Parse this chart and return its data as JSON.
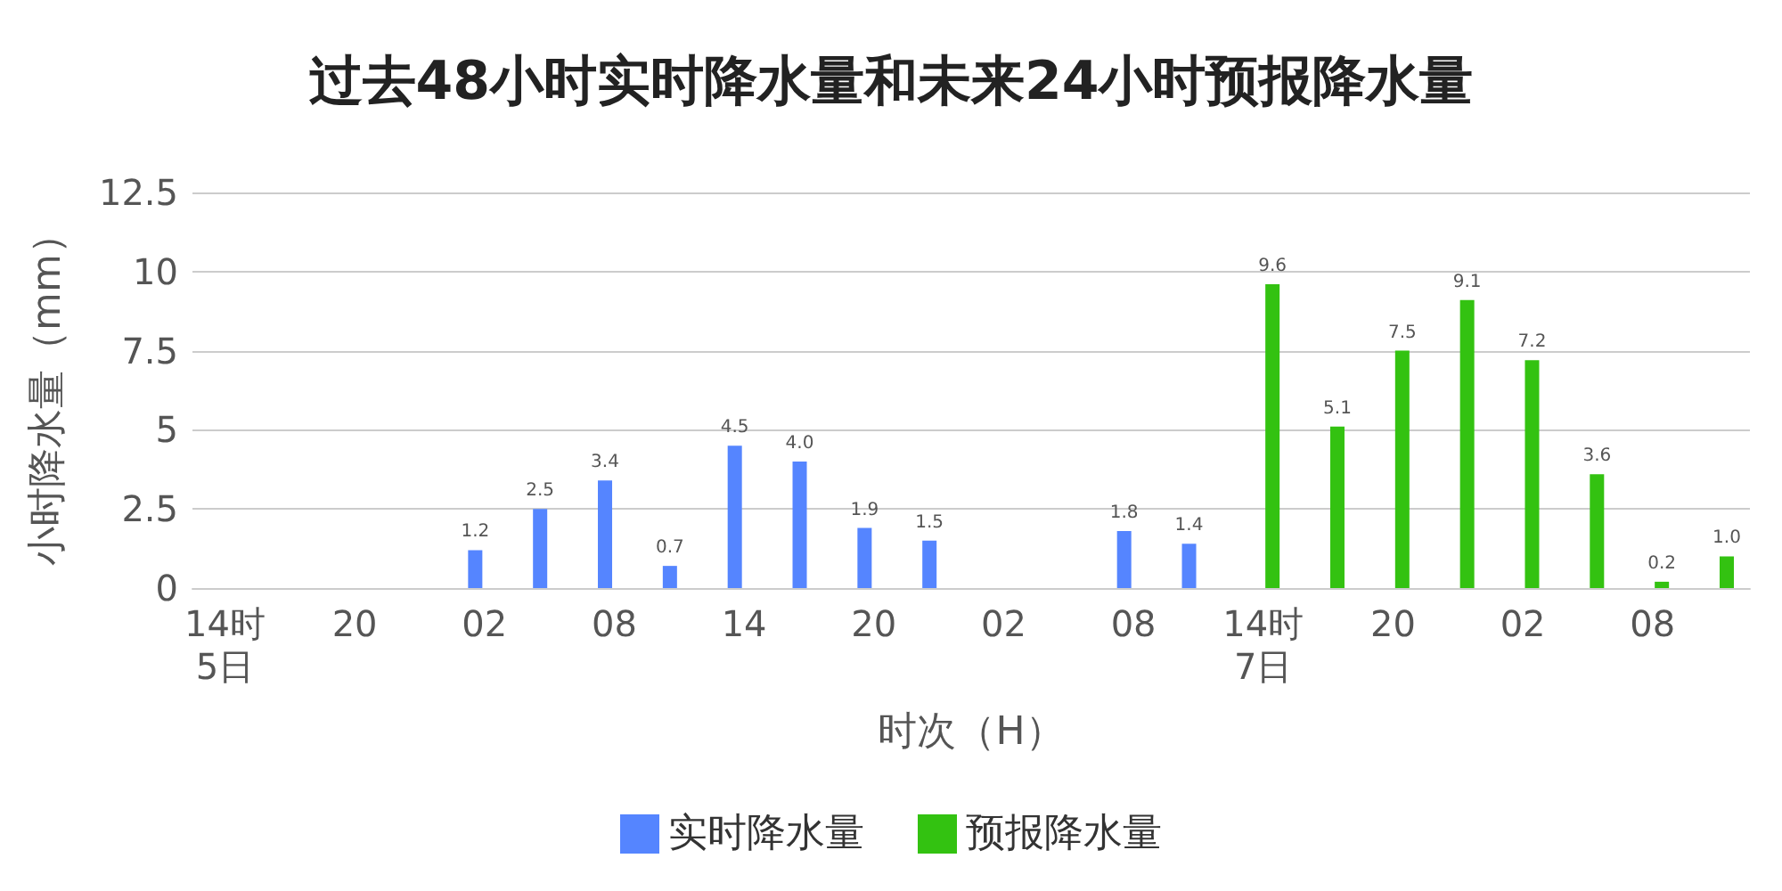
{
  "chart_data": {
    "type": "bar",
    "title": "过去48小时实时降水量和未来24小时预报降水量",
    "xlabel": "时次（H）",
    "ylabel": "小时降水量（mm）",
    "categories": [
      "14时\n5日",
      null,
      "20",
      null,
      "02",
      null,
      "08",
      null,
      "14",
      null,
      "20",
      null,
      "02",
      null,
      "08",
      null,
      "14时\n7日",
      null,
      "20",
      null,
      "02",
      null,
      "08",
      null
    ],
    "series": [
      {
        "name": "实时降水量",
        "color": "#5585ff",
        "values": [
          null,
          null,
          null,
          null,
          1.2,
          2.5,
          3.4,
          0.7,
          4.5,
          4.0,
          1.9,
          1.5,
          null,
          null,
          1.8,
          1.4,
          null,
          null,
          null,
          null,
          null,
          null,
          null,
          null
        ],
        "value_labels": [
          null,
          null,
          null,
          null,
          "1.2",
          "2.5",
          "3.4",
          "0.7",
          "4.5",
          "4.0",
          "1.9",
          "1.5",
          null,
          null,
          "1.8",
          "1.4",
          null,
          null,
          null,
          null,
          null,
          null,
          null,
          null
        ]
      },
      {
        "name": "预报降水量",
        "color": "#33c211",
        "values": [
          null,
          null,
          null,
          null,
          null,
          null,
          null,
          null,
          null,
          null,
          null,
          null,
          null,
          null,
          null,
          null,
          9.6,
          5.1,
          7.5,
          9.1,
          7.2,
          3.6,
          0.2,
          1.0
        ],
        "value_labels": [
          null,
          null,
          null,
          null,
          null,
          null,
          null,
          null,
          null,
          null,
          null,
          null,
          null,
          null,
          null,
          null,
          "9.6",
          "5.1",
          "7.5",
          "9.1",
          "7.2",
          "3.6",
          "0.2",
          "1.0"
        ]
      }
    ],
    "ylim": [
      0,
      12.5
    ],
    "yticks": [
      0,
      2.5,
      5,
      7.5,
      10,
      12.5
    ],
    "grid": "y",
    "legend": "bottom"
  }
}
